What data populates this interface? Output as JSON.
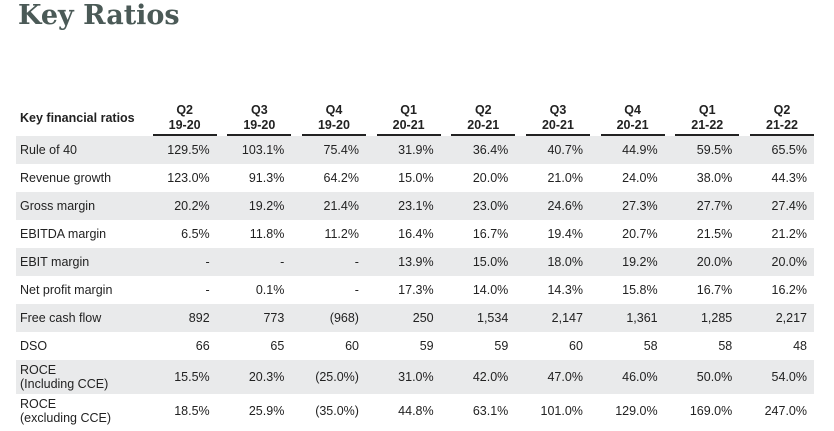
{
  "title": "Key Ratios",
  "table": {
    "label_header": "Key financial ratios",
    "periods": [
      {
        "q": "Q2",
        "y": "19-20"
      },
      {
        "q": "Q3",
        "y": "19-20"
      },
      {
        "q": "Q4",
        "y": "19-20"
      },
      {
        "q": "Q1",
        "y": "20-21"
      },
      {
        "q": "Q2",
        "y": "20-21"
      },
      {
        "q": "Q3",
        "y": "20-21"
      },
      {
        "q": "Q4",
        "y": "20-21"
      },
      {
        "q": "Q1",
        "y": "21-22"
      },
      {
        "q": "Q2",
        "y": "21-22"
      }
    ],
    "rows": [
      {
        "label": "Rule of 40",
        "values": [
          "129.5%",
          "103.1%",
          "75.4%",
          "31.9%",
          "36.4%",
          "40.7%",
          "44.9%",
          "59.5%",
          "65.5%"
        ]
      },
      {
        "label": "Revenue growth",
        "values": [
          "123.0%",
          "91.3%",
          "64.2%",
          "15.0%",
          "20.0%",
          "21.0%",
          "24.0%",
          "38.0%",
          "44.3%"
        ]
      },
      {
        "label": "Gross margin",
        "values": [
          "20.2%",
          "19.2%",
          "21.4%",
          "23.1%",
          "23.0%",
          "24.6%",
          "27.3%",
          "27.7%",
          "27.4%"
        ]
      },
      {
        "label": "EBITDA margin",
        "values": [
          "6.5%",
          "11.8%",
          "11.2%",
          "16.4%",
          "16.7%",
          "19.4%",
          "20.7%",
          "21.5%",
          "21.2%"
        ]
      },
      {
        "label": "EBIT margin",
        "values": [
          "-",
          "-",
          "-",
          "13.9%",
          "15.0%",
          "18.0%",
          "19.2%",
          "20.0%",
          "20.0%"
        ]
      },
      {
        "label": "Net profit margin",
        "values": [
          "-",
          "0.1%",
          "-",
          "17.3%",
          "14.0%",
          "14.3%",
          "15.8%",
          "16.7%",
          "16.2%"
        ]
      },
      {
        "label": "Free cash flow",
        "values": [
          "892",
          "773",
          "(968)",
          "250",
          "1,534",
          "2,147",
          "1,361",
          "1,285",
          "2,217"
        ]
      },
      {
        "label": "DSO",
        "values": [
          "66",
          "65",
          "60",
          "59",
          "59",
          "60",
          "58",
          "58",
          "48"
        ]
      },
      {
        "label": "ROCE",
        "label2": "(Including CCE)",
        "values": [
          "15.5%",
          "20.3%",
          "(25.0%)",
          "31.0%",
          "42.0%",
          "47.0%",
          "46.0%",
          "50.0%",
          "54.0%"
        ]
      },
      {
        "label": "ROCE",
        "label2": "(excluding CCE)",
        "values": [
          "18.5%",
          "25.9%",
          "(35.0%)",
          "44.8%",
          "63.1%",
          "101.0%",
          "129.0%",
          "169.0%",
          "247.0%"
        ]
      }
    ]
  }
}
